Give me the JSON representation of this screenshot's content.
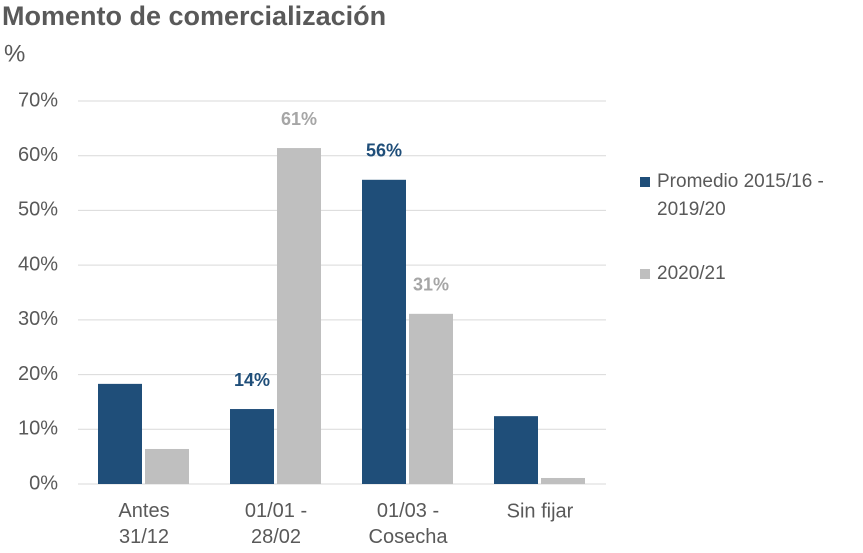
{
  "chart_data": {
    "type": "bar",
    "title": "Momento de comercialización",
    "subtitle": "%",
    "categories": [
      "Antes\n31/12",
      "01/01 -\n28/02",
      "01/03 -\nCosecha",
      "Sin fijar"
    ],
    "series": [
      {
        "name": "Promedio 2015/16 -\n2019/20",
        "color": "#1f4e79",
        "label_color": "#1f4e79",
        "values": [
          18.3,
          13.7,
          55.6,
          12.4
        ],
        "value_labels": [
          null,
          "14%",
          "56%",
          null
        ]
      },
      {
        "name": "2020/21",
        "color": "#bfbfbf",
        "label_color": "#a6a6a6",
        "values": [
          6.4,
          61.4,
          31.1,
          1.1
        ],
        "value_labels": [
          null,
          "61%",
          "31%",
          null
        ]
      }
    ],
    "ylim": [
      0,
      70
    ],
    "yticks": [
      {
        "value": 0,
        "label": "0%"
      },
      {
        "value": 10,
        "label": "10%"
      },
      {
        "value": 20,
        "label": "20%"
      },
      {
        "value": 30,
        "label": "30%"
      },
      {
        "value": 40,
        "label": "40%"
      },
      {
        "value": 50,
        "label": "50%"
      },
      {
        "value": 60,
        "label": "60%"
      },
      {
        "value": 70,
        "label": "70%"
      }
    ],
    "grid": true,
    "legend": "right"
  }
}
